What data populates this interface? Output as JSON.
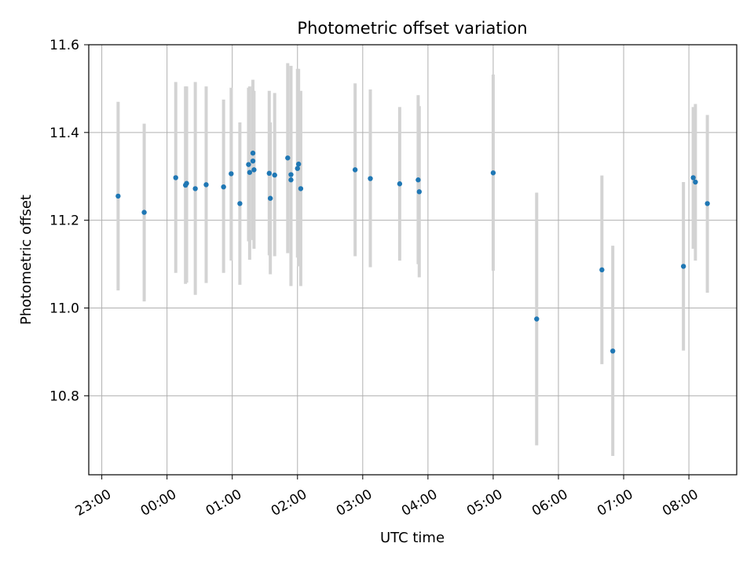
{
  "chart_data": {
    "type": "scatter",
    "title": "Photometric offset variation",
    "xlabel": "UTC time",
    "ylabel": "Photometric offset",
    "ylim": [
      10.62,
      11.6
    ],
    "xlim": [
      "22:48",
      "08:44"
    ],
    "grid": true,
    "x_ticks": [
      "23:00",
      "00:00",
      "01:00",
      "02:00",
      "03:00",
      "04:00",
      "05:00",
      "06:00",
      "07:00",
      "08:00"
    ],
    "y_ticks": [
      "10.8",
      "11.0",
      "11.2",
      "11.4",
      "11.6"
    ],
    "marker_color": "#1f77b4",
    "errorbar_color": "#d3d3d3",
    "points": [
      {
        "time": "23:15",
        "y": 11.255,
        "lo": 11.04,
        "hi": 11.47
      },
      {
        "time": "23:39",
        "y": 11.218,
        "lo": 11.015,
        "hi": 11.42
      },
      {
        "time": "00:08",
        "y": 11.297,
        "lo": 11.08,
        "hi": 11.515
      },
      {
        "time": "00:17",
        "y": 11.28,
        "lo": 11.055,
        "hi": 11.505
      },
      {
        "time": "00:18",
        "y": 11.284,
        "lo": 11.058,
        "hi": 11.505
      },
      {
        "time": "00:26",
        "y": 11.272,
        "lo": 11.03,
        "hi": 11.515
      },
      {
        "time": "00:36",
        "y": 11.281,
        "lo": 11.057,
        "hi": 11.505
      },
      {
        "time": "00:52",
        "y": 11.276,
        "lo": 11.08,
        "hi": 11.475
      },
      {
        "time": "00:59",
        "y": 11.306,
        "lo": 11.108,
        "hi": 11.502
      },
      {
        "time": "01:07",
        "y": 11.238,
        "lo": 11.053,
        "hi": 11.423
      },
      {
        "time": "01:15",
        "y": 11.327,
        "lo": 11.152,
        "hi": 11.502
      },
      {
        "time": "01:16",
        "y": 11.309,
        "lo": 11.11,
        "hi": 11.505
      },
      {
        "time": "01:19",
        "y": 11.335,
        "lo": 11.175,
        "hi": 11.52
      },
      {
        "time": "01:19",
        "y": 11.353,
        "lo": 11.155,
        "hi": 11.52
      },
      {
        "time": "01:20",
        "y": 11.315,
        "lo": 11.135,
        "hi": 11.495
      },
      {
        "time": "01:34",
        "y": 11.307,
        "lo": 11.12,
        "hi": 11.495
      },
      {
        "time": "01:35",
        "y": 11.25,
        "lo": 11.077,
        "hi": 11.423
      },
      {
        "time": "01:39",
        "y": 11.303,
        "lo": 11.118,
        "hi": 11.49
      },
      {
        "time": "01:51",
        "y": 11.342,
        "lo": 11.125,
        "hi": 11.558
      },
      {
        "time": "01:54",
        "y": 11.304,
        "lo": 11.05,
        "hi": 11.552
      },
      {
        "time": "01:54",
        "y": 11.292,
        "lo": 11.05,
        "hi": 11.55
      },
      {
        "time": "02:00",
        "y": 11.318,
        "lo": 11.115,
        "hi": 11.545
      },
      {
        "time": "02:01",
        "y": 11.328,
        "lo": 11.095,
        "hi": 11.545
      },
      {
        "time": "02:03",
        "y": 11.272,
        "lo": 11.05,
        "hi": 11.495
      },
      {
        "time": "02:53",
        "y": 11.315,
        "lo": 11.118,
        "hi": 11.512
      },
      {
        "time": "03:07",
        "y": 11.295,
        "lo": 11.093,
        "hi": 11.498
      },
      {
        "time": "03:34",
        "y": 11.283,
        "lo": 11.108,
        "hi": 11.458
      },
      {
        "time": "03:51",
        "y": 11.292,
        "lo": 11.1,
        "hi": 11.485
      },
      {
        "time": "03:52",
        "y": 11.265,
        "lo": 11.07,
        "hi": 11.46
      },
      {
        "time": "05:00",
        "y": 11.308,
        "lo": 11.085,
        "hi": 11.532
      },
      {
        "time": "05:40",
        "y": 10.975,
        "lo": 10.687,
        "hi": 11.263
      },
      {
        "time": "06:40",
        "y": 11.087,
        "lo": 10.872,
        "hi": 11.302
      },
      {
        "time": "06:50",
        "y": 10.902,
        "lo": 10.663,
        "hi": 11.142
      },
      {
        "time": "07:55",
        "y": 11.095,
        "lo": 10.903,
        "hi": 11.287
      },
      {
        "time": "08:04",
        "y": 11.297,
        "lo": 11.135,
        "hi": 11.458
      },
      {
        "time": "08:06",
        "y": 11.287,
        "lo": 11.108,
        "hi": 11.465
      },
      {
        "time": "08:17",
        "y": 11.238,
        "lo": 11.035,
        "hi": 11.44
      }
    ]
  }
}
